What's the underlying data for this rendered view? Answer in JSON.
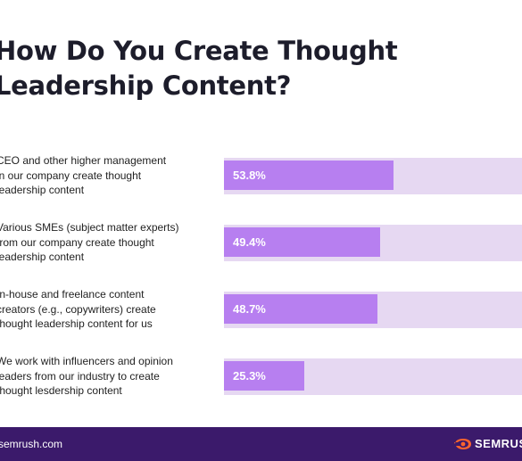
{
  "title_lines": [
    "How Do You Create Thought",
    "Leadership Content?"
  ],
  "chart_data": {
    "type": "bar",
    "orientation": "horizontal",
    "title": "How Do You Create Thought Leadership Content?",
    "categories": [
      "CEO and other higher management in our company create thought leadership content",
      "Various SMEs (subject matter experts) from our company create thought leadership content",
      "In-house and freelance content creators (e.g., copywriters) create thought leadership content for us",
      "We work with influencers and opinion leaders from our industry to create thought lesdership content"
    ],
    "values": [
      53.8,
      49.4,
      48.7,
      25.3
    ],
    "value_labels": [
      "53.8%",
      "49.4%",
      "48.7%",
      "25.3%"
    ],
    "unit": "%",
    "xlim": [
      0,
      100
    ]
  },
  "rows": [
    {
      "label_lines": [
        "CEO and other higher management",
        "in our company create thought",
        "leadership content"
      ],
      "value_label": "53.8%"
    },
    {
      "label_lines": [
        "Various SMEs (subject matter experts)",
        "from our company create thought",
        "leadership content"
      ],
      "value_label": "49.4%"
    },
    {
      "label_lines": [
        "In-house and freelance content",
        "creators (e.g., copywriters) create",
        "thought leadership content for us"
      ],
      "value_label": "48.7%"
    },
    {
      "label_lines": [
        "We work with influencers and opinion",
        "leaders from our industry to create",
        "thought lesdership content"
      ],
      "value_label": "25.3%"
    }
  ],
  "colors": {
    "bar": "#b77ff0",
    "track": "#e6d8f2",
    "footer": "#3b1a6b",
    "logo": "#ff642d"
  },
  "footer": {
    "site": "semrush.com",
    "brand": "SEMRUSH",
    "brand_icon": "semrush-fire-icon"
  }
}
